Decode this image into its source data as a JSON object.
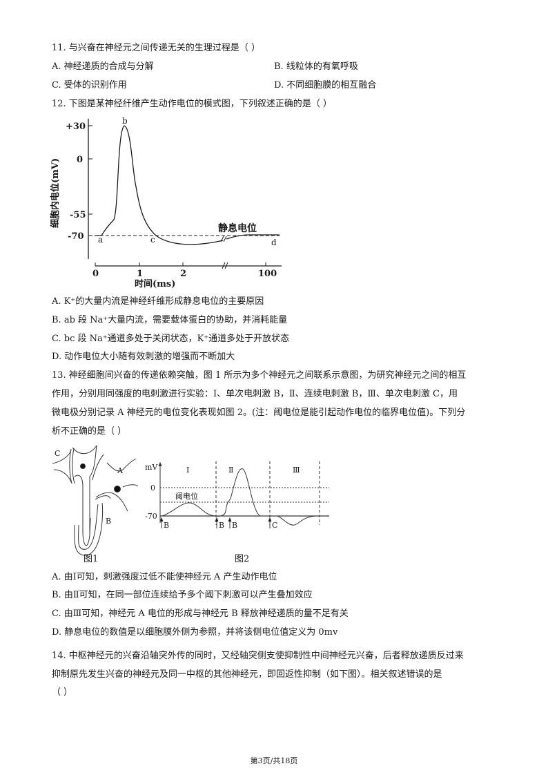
{
  "q11": {
    "stem": "11. 与兴奋在神经元之间传递无关的生理过程是（    ）",
    "options": [
      "A. 神经递质的合成与分解",
      "B. 线粒体的有氧呼吸",
      "C. 受体的识别作用",
      "D. 不同细胞膜的相互融合"
    ]
  },
  "q12": {
    "stem": "12. 下图是某神经纤维产生动作电位的模式图，下列叙述正确的是（        ）",
    "figure": {
      "ylabel": "细胞内电位(mV)",
      "xlabel": "时间(ms)",
      "yticks": [
        "+30",
        "0",
        "-55",
        "-70"
      ],
      "xticks": [
        "0",
        "1",
        "2",
        "100"
      ],
      "points": [
        "a",
        "b",
        "c",
        "d"
      ],
      "resting_label": "静息电位"
    },
    "options": [
      "A. K⁺的大量内流是神经纤维形成静息电位的主要原因",
      "B. ab 段 Na⁺大量内流，需要载体蛋白的协助，并消耗能量",
      "C. bc 段 Na⁺通道多处于关闭状态，K⁺通道多处于开放状态",
      "D. 动作电位大小随有效刺激的增强而不断加大"
    ]
  },
  "q13": {
    "stem_lines": [
      "13. 神经细胞间兴奋的传递依赖突触，图 1 所示为多个神经元之间联系示意图，为研究神经元之间的相互",
      "作用，分别用同强度的电刺激进行实验：Ⅰ、单次电刺激 B，Ⅱ、连续电刺激 B，Ⅲ、单次电刺激 C，用",
      "微电极分别记录 A 神经元的电位变化表现如图 2。(注：阈电位是能引起动作电位的临界电位值)。下列分",
      "析不正确的是（    ）"
    ],
    "figure1": {
      "caption": "图1",
      "labels": [
        "C",
        "A",
        "B"
      ]
    },
    "figure2": {
      "caption": "图2",
      "yunit": "mV",
      "yticks": [
        "0",
        "-70"
      ],
      "threshold_label": "阈电位",
      "sections": [
        "Ⅰ",
        "Ⅱ",
        "Ⅲ"
      ],
      "stimuli": [
        "B",
        "B",
        "B",
        "C"
      ]
    },
    "options": [
      "A. 由Ⅰ可知，刺激强度过低不能使神经元 A 产生动作电位",
      "B. 由Ⅱ可知，在同一部位连续给予多个阈下刺激可以产生叠加效应",
      "C. 由Ⅲ可知，神经元 A 电位的形成与神经元 B 释放神经递质的量不足有关",
      "D. 静息电位的数值是以细胞膜外侧为参照，并将该侧电位值定义为 0mv"
    ]
  },
  "q14": {
    "stem_lines": [
      "14. 中枢神经元的兴奋沿轴突外传的同时，又经轴突侧支使抑制性中间神经元兴奋，后者释放递质反过来",
      "抑制原先发生兴奋的神经元及同一中枢的其他神经元，即回返性抑制（如下图）。相关叙述错误的是",
      "（        ）"
    ]
  },
  "footer": "第3页/共18页"
}
